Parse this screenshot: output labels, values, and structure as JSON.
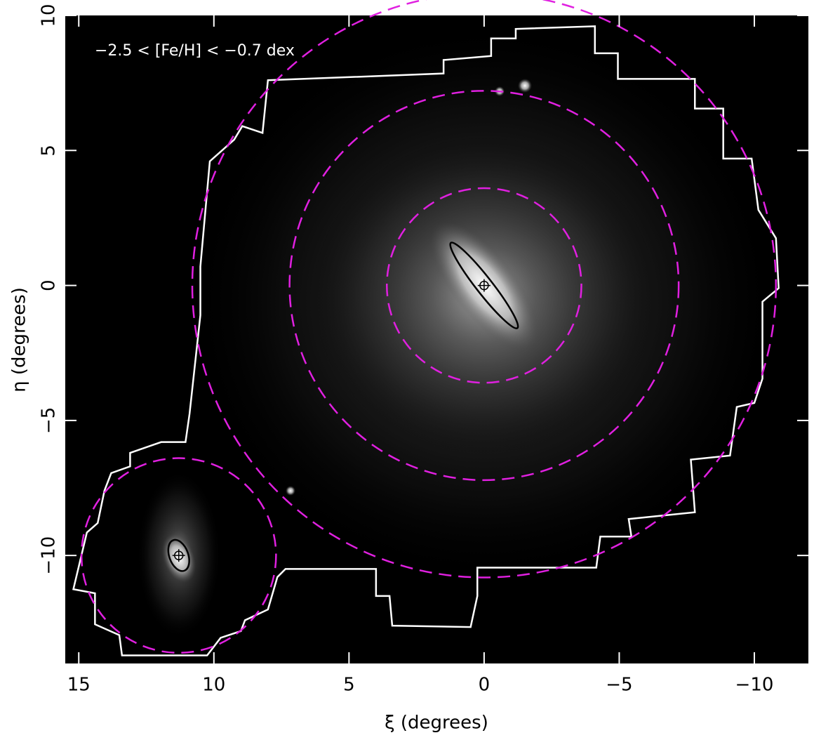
{
  "chart_data": {
    "type": "map",
    "annotation": "−2.5 < [Fe/H] < −0.7 dex",
    "xlabel": "ξ (degrees)",
    "ylabel": "η (degrees)",
    "xlim": [
      15.5,
      -12
    ],
    "ylim": [
      -14,
      10
    ],
    "xticks": [
      15,
      10,
      5,
      0,
      {
        "value": -5,
        "label": "−5"
      },
      {
        "value": -10,
        "label": "−10"
      }
    ],
    "yticks": [
      {
        "value": -10,
        "label": "−10"
      },
      {
        "value": -5,
        "label": "−5"
      },
      0,
      5,
      10
    ],
    "circle_color": "#e020e0",
    "circles": [
      {
        "x": 0,
        "y": 0,
        "r": 3.6
      },
      {
        "x": 0,
        "y": 0,
        "r": 7.2
      },
      {
        "x": 0,
        "y": 0,
        "r": 10.8
      },
      {
        "x": 11.3,
        "y": -10.0,
        "r": 3.6
      }
    ],
    "ellipses": [
      {
        "x": 0,
        "y": 0,
        "a": 2.0,
        "b": 0.3,
        "pa": 38
      },
      {
        "x": 11.3,
        "y": -10.0,
        "a": 0.6,
        "b": 0.35,
        "pa": 20
      }
    ],
    "footprint": [
      [
        8.0,
        7.6
      ],
      [
        1.5,
        7.85
      ],
      [
        1.5,
        8.35
      ],
      [
        -0.26,
        8.5
      ],
      [
        -0.26,
        9.15
      ],
      [
        -1.17,
        9.15
      ],
      [
        -1.17,
        9.5
      ],
      [
        -4.1,
        9.6
      ],
      [
        -4.1,
        8.6
      ],
      [
        -4.95,
        8.6
      ],
      [
        -4.95,
        7.65
      ],
      [
        -7.8,
        7.65
      ],
      [
        -7.8,
        6.55
      ],
      [
        -8.85,
        6.55
      ],
      [
        -8.85,
        4.7
      ],
      [
        -9.9,
        4.7
      ],
      [
        -10.15,
        2.8
      ],
      [
        -10.8,
        1.75
      ],
      [
        -10.9,
        -0.1
      ],
      [
        -10.3,
        -0.6
      ],
      [
        -10.3,
        -3.45
      ],
      [
        -10.0,
        -4.35
      ],
      [
        -9.35,
        -4.5
      ],
      [
        -9.1,
        -6.3
      ],
      [
        -7.65,
        -6.45
      ],
      [
        -7.8,
        -8.4
      ],
      [
        -5.35,
        -8.65
      ],
      [
        -5.45,
        -9.3
      ],
      [
        -4.3,
        -9.3
      ],
      [
        -4.15,
        -10.45
      ],
      [
        0.25,
        -10.45
      ],
      [
        0.25,
        -11.5
      ],
      [
        0.5,
        -12.65
      ],
      [
        3.4,
        -12.6
      ],
      [
        3.5,
        -11.5
      ],
      [
        4.0,
        -11.5
      ],
      [
        4.0,
        -10.5
      ],
      [
        7.35,
        -10.5
      ],
      [
        7.65,
        -10.8
      ],
      [
        8.0,
        -12.0
      ],
      [
        8.85,
        -12.4
      ],
      [
        9.0,
        -12.8
      ],
      [
        9.75,
        -13.05
      ],
      [
        10.25,
        -13.7
      ],
      [
        13.4,
        -13.7
      ],
      [
        13.5,
        -12.95
      ],
      [
        14.4,
        -12.55
      ],
      [
        14.4,
        -11.4
      ],
      [
        15.2,
        -11.25
      ],
      [
        14.7,
        -9.15
      ],
      [
        14.3,
        -8.8
      ],
      [
        14.05,
        -7.6
      ],
      [
        13.8,
        -6.95
      ],
      [
        13.1,
        -6.7
      ],
      [
        13.1,
        -6.2
      ],
      [
        11.95,
        -5.8
      ],
      [
        11.05,
        -5.8
      ],
      [
        10.9,
        -4.75
      ],
      [
        10.5,
        -1.1
      ],
      [
        10.5,
        0.7
      ],
      [
        10.15,
        4.6
      ],
      [
        9.25,
        5.4
      ],
      [
        8.95,
        5.9
      ],
      [
        8.2,
        5.65
      ]
    ]
  }
}
